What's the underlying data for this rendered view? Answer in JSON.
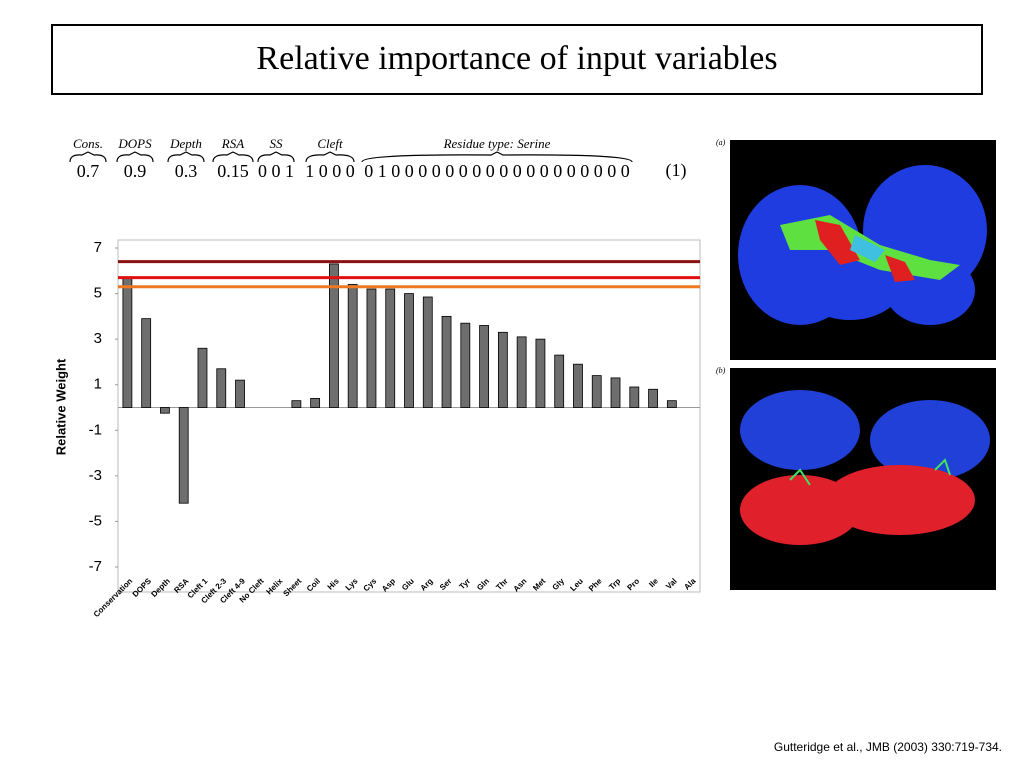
{
  "title": "Relative importance of input variables",
  "equation": {
    "terms": [
      {
        "label": "Cons.",
        "value": "0.7"
      },
      {
        "label": "DOPS",
        "value": "0.9"
      },
      {
        "label": "Depth",
        "value": "0.3"
      },
      {
        "label": "RSA",
        "value": "0.15"
      },
      {
        "label": "SS",
        "value": "0 0 1"
      },
      {
        "label": "Cleft",
        "value": "1 0 0 0"
      },
      {
        "label": "Residue type: Serine",
        "value": "0 1 0 0 0 0 0 0 0 0 0 0 0 0 0 0 0 0 0 0"
      }
    ],
    "number": "(1)"
  },
  "panels": [
    "(a)",
    "(b)"
  ],
  "citation": "Gutteridge et al., JMB (2003) 330:719-734.",
  "chart_data": {
    "type": "bar",
    "ylabel": "Relative Weight",
    "categories": [
      "Conservation",
      "DOPS",
      "Depth",
      "RSA",
      "Cleft 1",
      "Cleft 2-3",
      "Cleft 4-9",
      "No Cleft",
      "Helix",
      "Sheet",
      "Coil",
      "His",
      "Lys",
      "Cys",
      "Asp",
      "Glu",
      "Arg",
      "Ser",
      "Tyr",
      "Gln",
      "Thr",
      "Asn",
      "Met",
      "Gly",
      "Leu",
      "Phe",
      "Trp",
      "Pro",
      "Ile",
      "Val",
      "Ala"
    ],
    "values": [
      5.7,
      3.9,
      -0.25,
      -4.2,
      2.6,
      1.7,
      1.2,
      0,
      0,
      0.3,
      0.4,
      6.3,
      5.4,
      5.2,
      5.2,
      5.0,
      4.85,
      4.0,
      3.7,
      3.6,
      3.3,
      3.1,
      3.0,
      2.3,
      1.9,
      1.4,
      1.3,
      0.9,
      0.8,
      0.3,
      0
    ],
    "color": "#6e6e6e",
    "ylim": [
      -7,
      7
    ],
    "yticks": [
      7,
      5,
      3,
      1,
      -1,
      -3,
      -5,
      -7
    ],
    "reference_lines": [
      {
        "value": 6.4,
        "color": "#8b1010"
      },
      {
        "value": 5.7,
        "color": "#e01010"
      },
      {
        "value": 5.3,
        "color": "#f07820"
      }
    ]
  }
}
